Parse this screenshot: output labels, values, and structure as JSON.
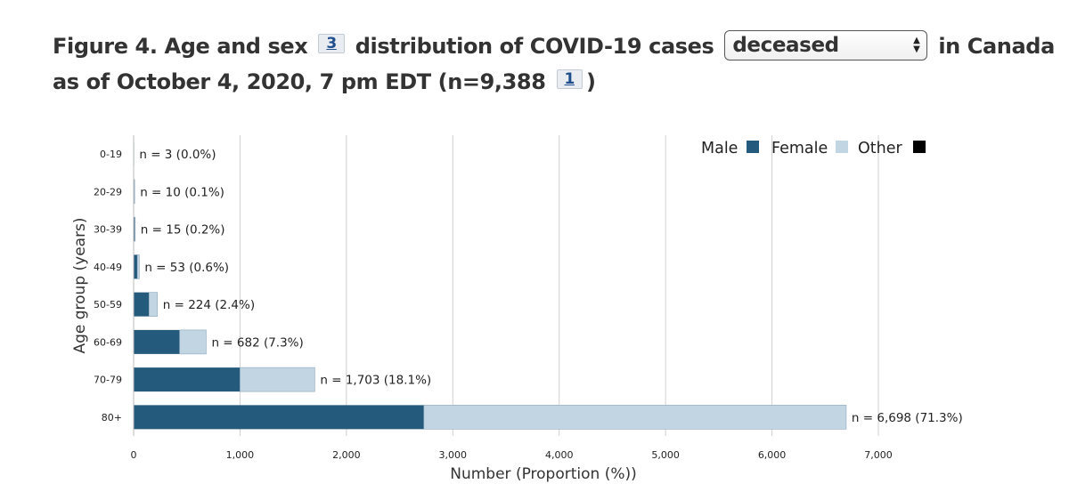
{
  "title": {
    "part1": "Figure 4. Age and sex",
    "footnote_a": "3",
    "part2": "distribution of COVID-19 cases",
    "select_value": "deceased",
    "part3": "in Canada",
    "part4": "as of October 4, 2020, 7 pm EDT (n=9,388",
    "footnote_b": "1",
    "part5": ")"
  },
  "colors": {
    "male": "#245a7c",
    "female": "#c1d5e3",
    "other": "#000000",
    "grid": "#d0d0d0"
  },
  "chart_data": {
    "type": "bar",
    "orientation": "horizontal",
    "stacked": true,
    "categories": [
      "0-19",
      "20-29",
      "30-39",
      "40-49",
      "50-59",
      "60-69",
      "70-79",
      "80+"
    ],
    "series": [
      {
        "name": "Male",
        "values": [
          2,
          7,
          10,
          35,
          145,
          432,
          1000,
          2728
        ]
      },
      {
        "name": "Female",
        "values": [
          1,
          3,
          5,
          18,
          79,
          250,
          703,
          3970
        ]
      },
      {
        "name": "Other",
        "values": [
          0,
          0,
          0,
          0,
          0,
          0,
          0,
          0
        ]
      }
    ],
    "data_labels": [
      "n = 3 (0.0%)",
      "n = 10 (0.1%)",
      "n = 15 (0.2%)",
      "n = 53 (0.6%)",
      "n = 224 (2.4%)",
      "n = 682 (7.3%)",
      "n = 1,703 (18.1%)",
      "n = 6,698 (71.3%)"
    ],
    "xlabel": "Number (Proportion (%))",
    "ylabel": "Age group (years)",
    "xlim": [
      0,
      7000
    ],
    "xticks": [
      0,
      1000,
      2000,
      3000,
      4000,
      5000,
      6000,
      7000
    ],
    "xtick_labels": [
      "0",
      "1,000",
      "2,000",
      "3,000",
      "4,000",
      "5,000",
      "6,000",
      "7,000"
    ],
    "grid": "vertical",
    "legend_position": "top-right"
  }
}
